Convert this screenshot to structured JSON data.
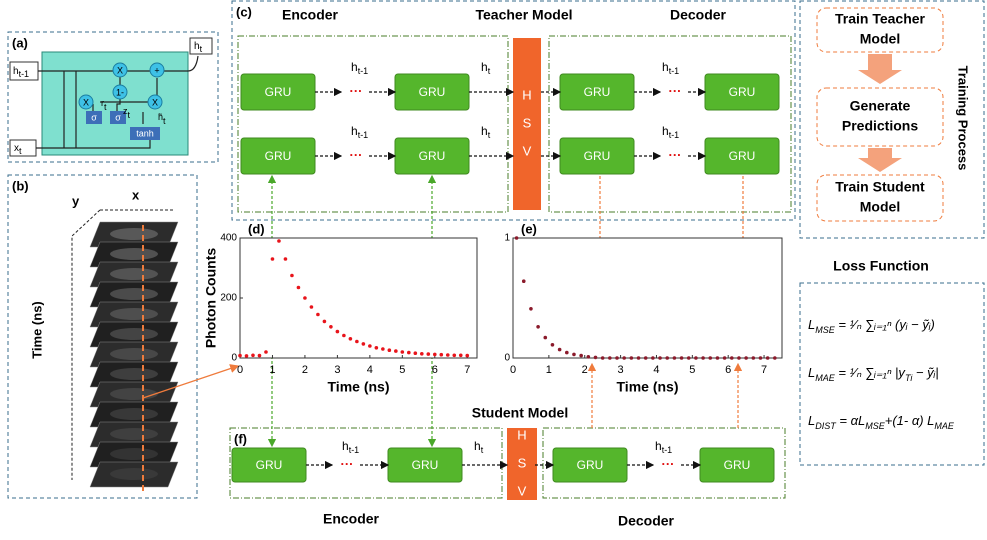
{
  "panels": {
    "a": "(a)",
    "b": "(b)",
    "c": "(c)",
    "f": "(f)"
  },
  "lstm": {
    "h": "h",
    "x": "x",
    "t_prev": "t-1",
    "t": "t",
    "z": "z",
    "r": "r",
    "h_tilde": "h̃",
    "mult": "X",
    "plus": "+",
    "one_minus": "1-",
    "sigma": "σ",
    "tanh": "tanh"
  },
  "volume": {
    "y": "y",
    "x": "x",
    "time": "Time (ns)"
  },
  "teacher": {
    "title": "Teacher Model",
    "encoder": "Encoder",
    "decoder": "Decoder"
  },
  "student": {
    "title": "Student Model",
    "encoder": "Encoder",
    "decoder": "Decoder"
  },
  "gru": "GRU",
  "hsv": [
    "H",
    "S",
    "V"
  ],
  "ellipsis": "···",
  "h": "h",
  "t_prev": "t-1",
  "t": "t",
  "training": {
    "title": "Training Process",
    "steps": [
      [
        "Train Teacher",
        "Model"
      ],
      [
        "Generate",
        "Predictions"
      ],
      [
        "Train Student",
        "Model"
      ]
    ]
  },
  "loss": {
    "title": "Loss Function",
    "equations": [
      [
        {
          "text": "L"
        },
        {
          "sub": "MSE"
        },
        {
          "text": " = ¹⁄ₙ ∑ᵢ₌₁ⁿ (yᵢ − ỹᵢ)"
        }
      ],
      [
        {
          "text": "L"
        },
        {
          "sub": "MAE"
        },
        {
          "text": " = ¹⁄ₙ ∑ᵢ₌₁ⁿ |y"
        },
        {
          "sub": "Ti"
        },
        {
          "text": " − ỹᵢ|"
        }
      ],
      [
        {
          "text": "L"
        },
        {
          "sub": "DIST"
        },
        {
          "text": " = αL"
        },
        {
          "sub": "MSE"
        },
        {
          "text": "+(1- α) L"
        },
        {
          "sub": "MAE"
        }
      ]
    ]
  },
  "chart_data": [
    {
      "type": "scatter",
      "label": "(d)",
      "x_label": "Time (ns)",
      "y_label": "Photon Counts",
      "color": "#e8141b",
      "x": [
        0,
        0.2,
        0.4,
        0.6,
        0.8,
        1.0,
        1.2,
        1.4,
        1.6,
        1.8,
        2.0,
        2.2,
        2.4,
        2.6,
        2.8,
        3.0,
        3.2,
        3.4,
        3.6,
        3.8,
        4.0,
        4.2,
        4.4,
        4.6,
        4.8,
        5.0,
        5.2,
        5.4,
        5.6,
        5.8,
        6.0,
        6.2,
        6.4,
        6.6,
        6.8,
        7.0
      ],
      "values": [
        8,
        7,
        9,
        8,
        20,
        330,
        390,
        330,
        275,
        235,
        200,
        170,
        145,
        122,
        104,
        88,
        75,
        64,
        55,
        47,
        40,
        34,
        30,
        26,
        23,
        20,
        18,
        16,
        14,
        13,
        12,
        11,
        10,
        9,
        9,
        8
      ],
      "xlim": [
        0,
        7.3
      ],
      "ylim": [
        0,
        400
      ],
      "xticks": [
        0,
        1,
        2,
        3,
        4,
        5,
        6,
        7
      ],
      "yticks": [
        0,
        200,
        400
      ]
    },
    {
      "type": "scatter",
      "label": "(e)",
      "x_label": "Time (ns)",
      "color": "#8b1a2b",
      "x": [
        0.1,
        0.3,
        0.5,
        0.7,
        0.9,
        1.1,
        1.3,
        1.5,
        1.7,
        1.9,
        2.1,
        2.3,
        2.5,
        2.7,
        2.9,
        3.1,
        3.3,
        3.5,
        3.7,
        3.9,
        4.1,
        4.3,
        4.5,
        4.7,
        4.9,
        5.1,
        5.3,
        5.5,
        5.7,
        5.9,
        6.1,
        6.3,
        6.5,
        6.7,
        6.9,
        7.1,
        7.3
      ],
      "values": [
        1,
        0.64,
        0.41,
        0.26,
        0.17,
        0.11,
        0.07,
        0.045,
        0.03,
        0.02,
        0.01,
        0.005,
        0,
        0,
        0,
        0,
        0,
        0,
        0,
        0,
        0,
        0,
        0,
        0,
        0,
        0,
        0,
        0,
        0,
        0,
        0,
        0,
        0,
        0,
        0,
        0,
        0
      ],
      "xlim": [
        0,
        7.5
      ],
      "ylim": [
        0,
        1
      ],
      "xticks": [
        0,
        1,
        2,
        3,
        4,
        5,
        6,
        7
      ],
      "yticks": [
        0,
        1
      ]
    }
  ]
}
